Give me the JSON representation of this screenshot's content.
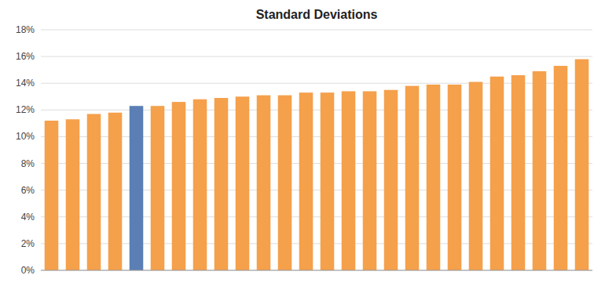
{
  "chart_data": {
    "type": "bar",
    "title": "Standard Deviations",
    "values": [
      0.112,
      0.113,
      0.117,
      0.118,
      0.123,
      0.123,
      0.126,
      0.128,
      0.129,
      0.13,
      0.131,
      0.131,
      0.133,
      0.133,
      0.134,
      0.134,
      0.135,
      0.138,
      0.139,
      0.139,
      0.141,
      0.145,
      0.146,
      0.149,
      0.153,
      0.158
    ],
    "colors": [
      "#F5A04B",
      "#F5A04B",
      "#F5A04B",
      "#F5A04B",
      "#5B7FB5",
      "#F5A04B",
      "#F5A04B",
      "#F5A04B",
      "#F5A04B",
      "#F5A04B",
      "#F5A04B",
      "#F5A04B",
      "#F5A04B",
      "#F5A04B",
      "#F5A04B",
      "#F5A04B",
      "#F5A04B",
      "#F5A04B",
      "#F5A04B",
      "#F5A04B",
      "#F5A04B",
      "#F5A04B",
      "#F5A04B",
      "#F5A04B",
      "#F5A04B",
      "#F5A04B"
    ],
    "ylim": [
      0,
      0.18
    ],
    "yticks": [
      {
        "value": 0,
        "label": "0%"
      },
      {
        "value": 0.02,
        "label": "2%"
      },
      {
        "value": 0.04,
        "label": "4%"
      },
      {
        "value": 0.06,
        "label": "6%"
      },
      {
        "value": 0.08,
        "label": "8%"
      },
      {
        "value": 0.1,
        "label": "10%"
      },
      {
        "value": 0.12,
        "label": "12%"
      },
      {
        "value": 0.14,
        "label": "14%"
      },
      {
        "value": 0.16,
        "label": "16%"
      },
      {
        "value": 0.18,
        "label": "18%"
      }
    ],
    "grid": true,
    "tick_labels": "y"
  }
}
